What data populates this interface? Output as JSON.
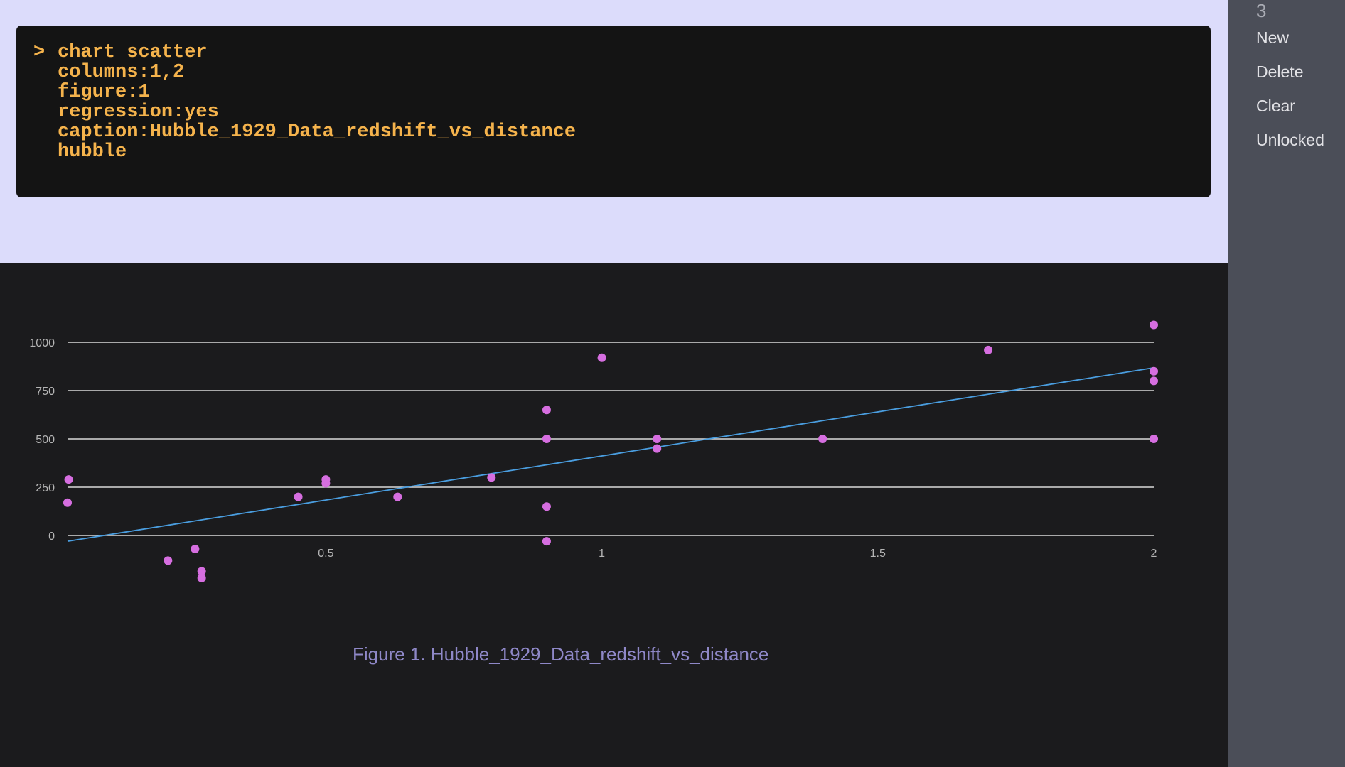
{
  "command": {
    "prompt": ">",
    "lines": [
      "chart scatter",
      "columns:1,2",
      "figure:1",
      "regression:yes",
      "caption:Hubble_1929_Data_redshift_vs_distance",
      "hubble"
    ]
  },
  "sidebar": {
    "count": "3",
    "items": [
      "New",
      "Delete",
      "Clear",
      "Unlocked"
    ]
  },
  "caption": "Figure 1. Hubble_1929_Data_redshift_vs_distance",
  "colors": {
    "points": "#d66ee0",
    "regression": "#4a9ee0",
    "gridlines": "#d9d9d9",
    "ticks": "#b5b5b5",
    "caption": "#8f88c8"
  },
  "chart_data": {
    "type": "scatter",
    "title": "",
    "xlabel": "",
    "ylabel": "",
    "xlim": [
      0.032,
      2.0
    ],
    "ylim": [
      -220,
      1090
    ],
    "x_ticks": [
      "0.5",
      "1",
      "1.5",
      "2"
    ],
    "x_tick_values": [
      0.5,
      1,
      1.5,
      2
    ],
    "y_ticks": [
      "0",
      "250",
      "500",
      "750",
      "1000"
    ],
    "y_tick_values": [
      0,
      250,
      500,
      750,
      1000
    ],
    "grid": "horizontal",
    "legend": "none",
    "series": [
      {
        "x": [
          0.032,
          0.034,
          0.214,
          0.263,
          0.275,
          0.275,
          0.45,
          0.5,
          0.5,
          0.63,
          0.8,
          0.9,
          0.9,
          0.9,
          0.9,
          1.0,
          1.1,
          1.1,
          1.4,
          1.7,
          2.0,
          2.0,
          2.0,
          2.0
        ],
        "y": [
          170,
          290,
          -130,
          -70,
          -185,
          -220,
          200,
          290,
          270,
          200,
          300,
          -30,
          650,
          150,
          500,
          920,
          450,
          500,
          500,
          960,
          500,
          850,
          800,
          1090
        ]
      }
    ],
    "regression": {
      "x": [
        0.032,
        2.0
      ],
      "y": [
        -30,
        868
      ]
    }
  }
}
